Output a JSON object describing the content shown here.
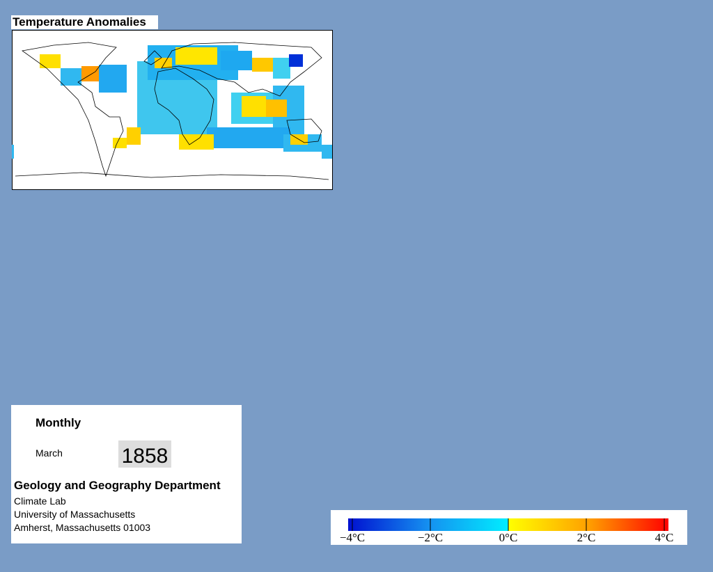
{
  "map": {
    "title": "Temperature Anomalies"
  },
  "info": {
    "period": "Monthly",
    "month": "March",
    "year": "1858",
    "department": "Geology and Geography Department",
    "address": [
      "Climate Lab",
      "University of Massachusetts",
      "Amherst, Massachusetts 01003"
    ]
  },
  "colorbar": {
    "ticks": [
      {
        "value": -4,
        "label": "−4°C"
      },
      {
        "value": -2,
        "label": "−2°C"
      },
      {
        "value": 0,
        "label": "0°C"
      },
      {
        "value": 2,
        "label": "2°C"
      },
      {
        "value": 4,
        "label": "4°C"
      }
    ]
  }
}
